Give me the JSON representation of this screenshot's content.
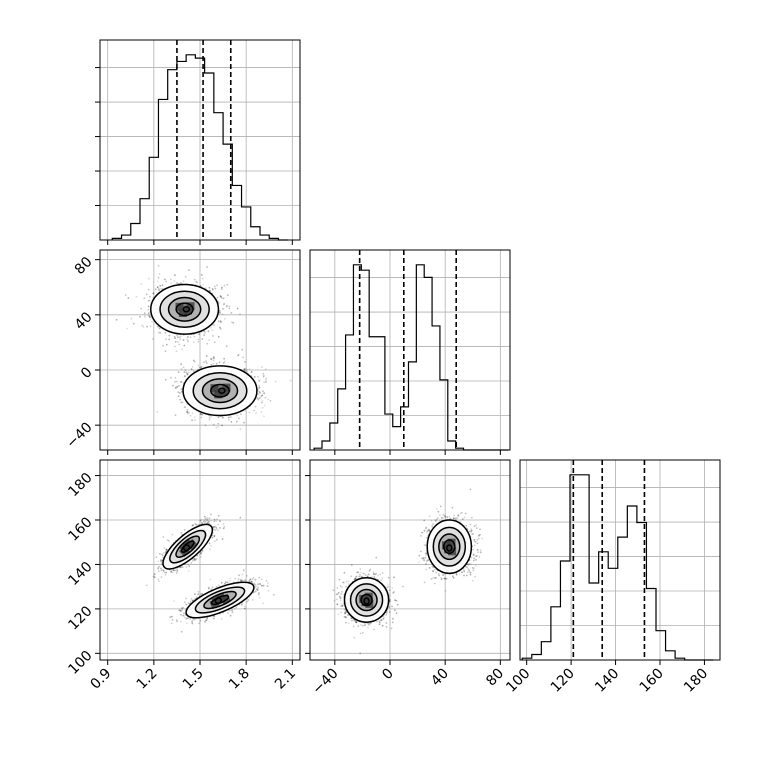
{
  "chart_data": {
    "type": "corner",
    "parameters": [
      "",
      "",
      ""
    ],
    "axes": {
      "p0": {
        "range": [
          0.85,
          2.15
        ],
        "ticks": [
          "0.9",
          "1.2",
          "1.5",
          "1.8",
          "2.1"
        ],
        "tick_values": [
          0.9,
          1.2,
          1.5,
          1.8,
          2.1
        ]
      },
      "p1": {
        "range": [
          -58,
          87
        ],
        "ticks": [
          "−40",
          "0",
          "40",
          "80"
        ],
        "tick_values": [
          -40,
          0,
          40,
          80
        ]
      },
      "p2": {
        "range": [
          97,
          187
        ],
        "ticks": [
          "100",
          "120",
          "140",
          "160",
          "180"
        ],
        "tick_values": [
          100,
          120,
          140,
          160,
          180
        ]
      }
    },
    "histograms": [
      {
        "param": "p0",
        "bin_edges": [
          0.93,
          0.99,
          1.05,
          1.11,
          1.17,
          1.23,
          1.29,
          1.35,
          1.41,
          1.47,
          1.53,
          1.59,
          1.65,
          1.71,
          1.77,
          1.83,
          1.89,
          1.95,
          2.01,
          2.07
        ],
        "counts": [
          1,
          3,
          10,
          25,
          50,
          85,
          103,
          108,
          112,
          110,
          101,
          77,
          58,
          33,
          20,
          8,
          3,
          1,
          0
        ],
        "quantiles": [
          1.35,
          1.52,
          1.7
        ]
      },
      {
        "param": "p1",
        "bin_edges": [
          -55,
          -49.3,
          -43.6,
          -37.9,
          -32.2,
          -26.5,
          -20.8,
          -15.1,
          -9.4,
          -3.7,
          2,
          7.7,
          13.4,
          19.1,
          24.8,
          30.5,
          36.2,
          41.9,
          47.6,
          53.3,
          59,
          64.7,
          70.4,
          76.1,
          81.8,
          86
        ],
        "counts": [
          1,
          5,
          15,
          34,
          64,
          103,
          100,
          63,
          63,
          20,
          13,
          24,
          49,
          103,
          96,
          69,
          39,
          5,
          1,
          0,
          0,
          0,
          0,
          0,
          0
        ],
        "quantiles": [
          -22,
          10,
          48
        ]
      },
      {
        "param": "p2",
        "bin_edges": [
          98,
          102.3,
          106.6,
          110.9,
          115.2,
          119.5,
          123.8,
          128.1,
          132.4,
          136.7,
          141,
          145.3,
          149.6,
          153.9,
          158.2,
          162.5,
          166.8,
          171.1,
          175.4,
          179.7,
          184
        ],
        "counts": [
          1,
          3,
          10,
          29,
          54,
          101,
          101,
          42,
          59,
          50,
          67,
          84,
          75,
          39,
          16,
          5,
          1,
          0,
          0,
          0
        ],
        "quantiles": [
          121,
          134,
          153
        ]
      }
    ],
    "scatter_2d": [
      {
        "x": "p0",
        "y": "p1",
        "modes": [
          {
            "center": [
              1.4,
              44
            ],
            "spread": [
              0.11,
              9
            ]
          },
          {
            "center": [
              1.63,
              -15
            ],
            "spread": [
              0.12,
              9
            ]
          }
        ]
      },
      {
        "x": "p0",
        "y": "p2",
        "modes": [
          {
            "center": [
              1.42,
              148
            ],
            "spread": [
              0.08,
              5
            ],
            "tilt": 0.75
          },
          {
            "center": [
              1.63,
              124
            ],
            "spread": [
              0.11,
              4
            ],
            "tilt": 0.7
          }
        ]
      },
      {
        "x": "p1",
        "y": "p2",
        "modes": [
          {
            "center": [
              -17,
              124
            ],
            "spread": [
              8,
              5
            ]
          },
          {
            "center": [
              43,
              148
            ],
            "spread": [
              8,
              6
            ]
          }
        ]
      }
    ],
    "grid": true,
    "legend": "none",
    "title": "",
    "xlabel": "",
    "ylabel": ""
  }
}
